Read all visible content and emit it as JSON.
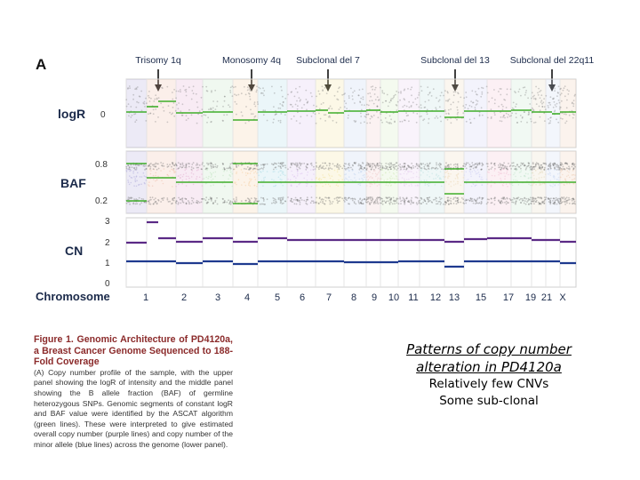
{
  "figure": {
    "panel_letter": "A",
    "annotations": [
      "Trisomy 1q",
      "Monosomy 4q",
      "Subclonal del 7",
      "Subclonal del 13",
      "Subclonal del 22q11"
    ],
    "panels": {
      "logr": {
        "label": "logR",
        "ticks": [
          "0"
        ]
      },
      "baf": {
        "label": "BAF",
        "ticks": [
          "0.8",
          "0.2"
        ]
      },
      "cn": {
        "label": "CN",
        "ticks": [
          "3",
          "2",
          "1",
          "0"
        ]
      }
    },
    "xaxis_label": "Chromosome",
    "chromosome_labels": [
      "1",
      "2",
      "3",
      "4",
      "5",
      "6",
      "7",
      "8",
      "9",
      "10",
      "11",
      "12",
      "13",
      "15",
      "17",
      "19",
      "21",
      "X"
    ],
    "colors": {
      "green_segment": "#3fae2a",
      "purple_cn": "#5b2a86",
      "blue_minor": "#1f3a8f",
      "arrow": "#111111"
    }
  },
  "caption": {
    "heading": "Figure 1. Genomic Architecture of PD4120a, a Breast Cancer Genome Sequenced to 188-Fold Coverage",
    "body": "(A) Copy number profile of the sample, with the upper panel showing the logR of intensity and the middle panel showing the B allele fraction (BAF) of germline heterozygous SNPs. Genomic segments of constant logR and BAF value were identified by the ASCAT algorithm (green lines). These were interpreted to give estimated overall copy number (purple lines) and copy number of the minor allele (blue lines) across the genome (lower panel)."
  },
  "side_notes": {
    "title": "Patterns of copy number alteration in PD4120a",
    "lines": [
      "Relatively few CNVs",
      "Some sub-clonal"
    ]
  }
}
